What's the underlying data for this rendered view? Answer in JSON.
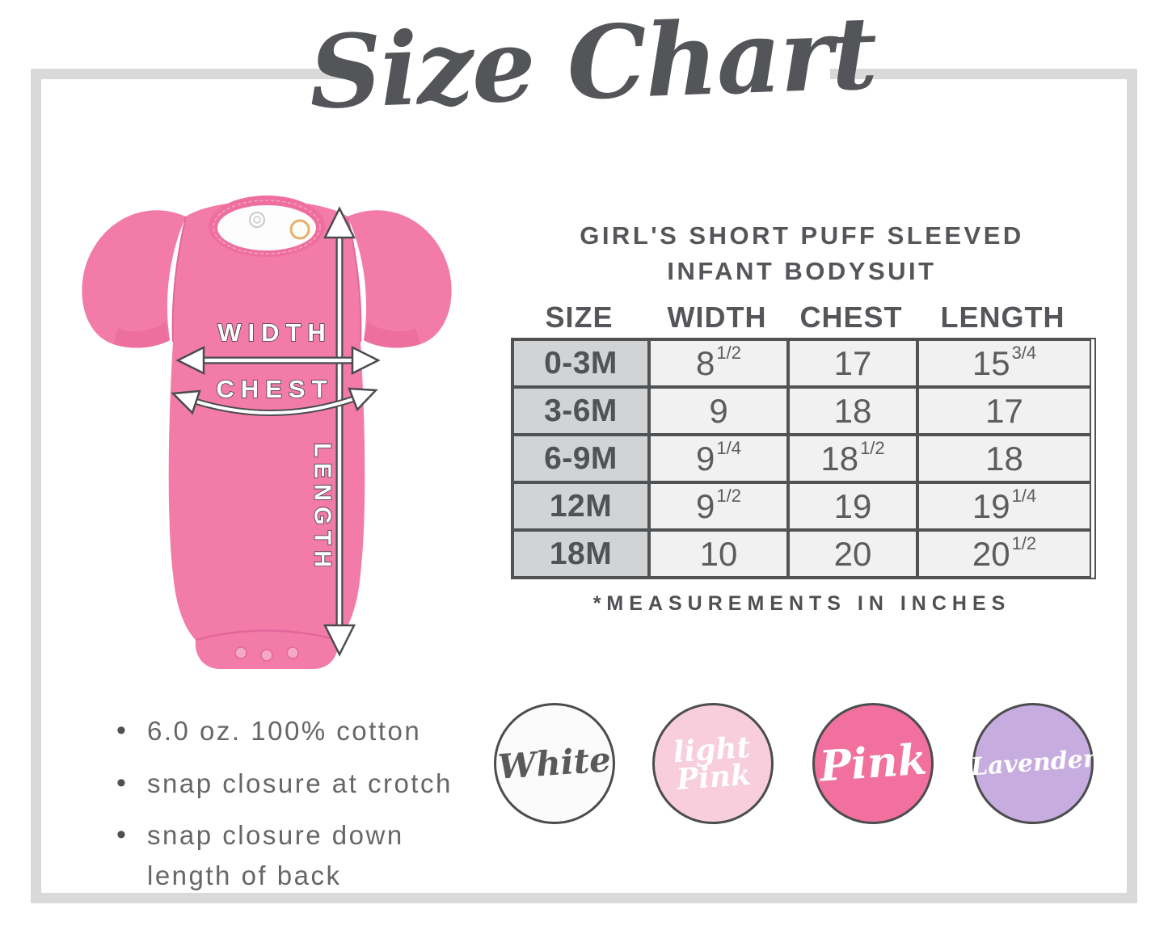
{
  "page": {
    "title": "Size Chart"
  },
  "product": {
    "title_line1": "GIRL'S SHORT PUFF SLEEVED",
    "title_line2": "INFANT BODYSUIT"
  },
  "diagram": {
    "labels": {
      "width": "WIDTH",
      "chest": "CHEST",
      "length": "LENGTH"
    }
  },
  "chart_data": {
    "type": "table",
    "title": "Girl's Short Puff Sleeved Infant Bodysuit size chart",
    "columns": [
      "SIZE",
      "WIDTH",
      "CHEST",
      "LENGTH"
    ],
    "rows": [
      {
        "size": "0-3M",
        "width": "8 1/2",
        "chest": "17",
        "length": "15 3/4"
      },
      {
        "size": "3-6M",
        "width": "9",
        "chest": "18",
        "length": "17"
      },
      {
        "size": "6-9M",
        "width": "9 1/4",
        "chest": "18 1/2",
        "length": "18"
      },
      {
        "size": "12M",
        "width": "9 1/2",
        "chest": "19",
        "length": "19 1/4"
      },
      {
        "size": "18M",
        "width": "10",
        "chest": "20",
        "length": "20 1/2"
      }
    ],
    "note": "*MEASUREMENTS IN INCHES",
    "units": "inches"
  },
  "features": [
    "6.0 oz. 100% cotton",
    "snap closure at crotch",
    "snap closure down length of back"
  ],
  "colors": [
    {
      "name": "White",
      "fill": "#fbfbfb",
      "text_color": "#58595b",
      "lines": [
        "White"
      ]
    },
    {
      "name": "light Pink",
      "fill": "#f8cedc",
      "text_color": "#ffffff",
      "lines": [
        "light",
        "Pink"
      ]
    },
    {
      "name": "Pink",
      "fill": "#f2709e",
      "text_color": "#ffffff",
      "lines": [
        "Pink"
      ]
    },
    {
      "name": "Lavender",
      "fill": "#c6acdf",
      "text_color": "#ffffff",
      "lines": [
        "Lavender"
      ]
    }
  ],
  "theme": {
    "ink": "#58595b",
    "frame_gray": "#d9d9d9",
    "bodysuit_pink": "#f27ba7",
    "size_col_bg": "#d2d3d4",
    "value_cell_bg": "#f1f1f2",
    "table_border": "#515254"
  }
}
